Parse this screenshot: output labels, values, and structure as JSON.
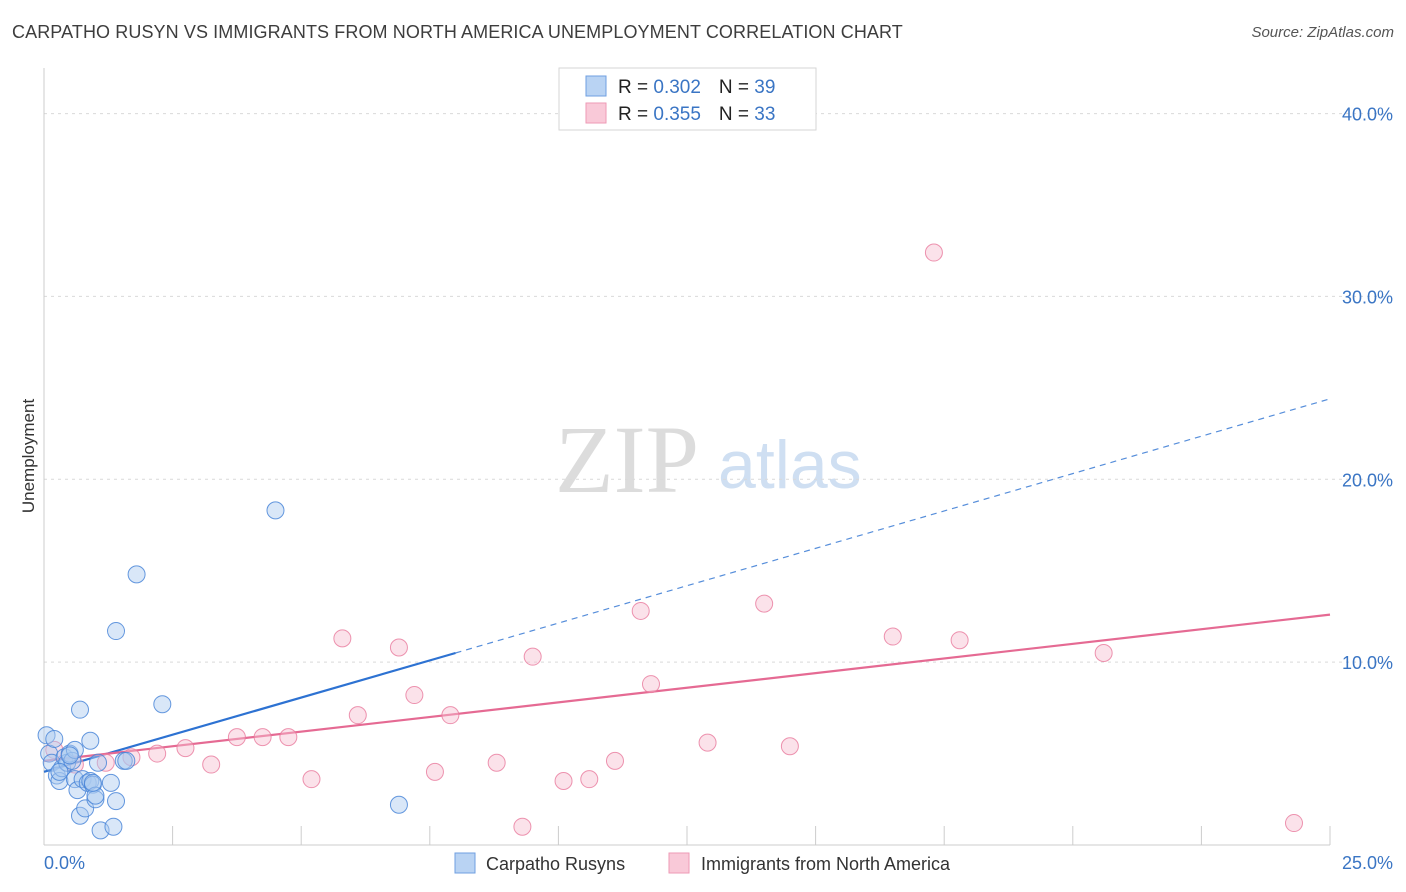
{
  "header": {
    "title": "CARPATHO RUSYN VS IMMIGRANTS FROM NORTH AMERICA UNEMPLOYMENT CORRELATION CHART",
    "source": "Source: ZipAtlas.com"
  },
  "watermark": {
    "zip": "ZIP",
    "atlas": "atlas"
  },
  "colors": {
    "blue": "#4a86d8",
    "blue_fill": "#aac9f0",
    "blue_line": "#2d72d2",
    "pink": "#e8799c",
    "pink_fill": "#f7bfd0",
    "pink_line": "#e56a93",
    "tick_text": "#3a75c4",
    "grid": "#d9d9d9"
  },
  "legend": {
    "rows": [
      {
        "r_label": "R = ",
        "r_value": "0.302",
        "n_label": "N = ",
        "n_value": "39"
      },
      {
        "r_label": "R = ",
        "r_value": "0.355",
        "n_label": "N = ",
        "n_value": "33"
      }
    ]
  },
  "chart_data": {
    "type": "scatter",
    "title": "CARPATHO RUSYN VS IMMIGRANTS FROM NORTH AMERICA UNEMPLOYMENT CORRELATION CHART",
    "xlabel": "",
    "ylabel": "Unemployment",
    "xlim": [
      0,
      25
    ],
    "ylim": [
      0,
      42
    ],
    "x_tick_labels": [
      {
        "value": 0,
        "label": "0.0%"
      },
      {
        "value": 25,
        "label": "25.0%"
      }
    ],
    "y_ticks": [
      {
        "value": 10,
        "label": "10.0%"
      },
      {
        "value": 20,
        "label": "20.0%"
      },
      {
        "value": 30,
        "label": "30.0%"
      },
      {
        "value": 40,
        "label": "40.0%"
      }
    ],
    "x_minor_ticks": [
      2.5,
      5,
      7.5,
      10,
      12.5,
      15,
      17.5,
      20,
      22.5,
      25
    ],
    "series": [
      {
        "name": "Carpatho Rusyns",
        "color": "#4a86d8",
        "trend": {
          "x0": 0,
          "y0": 4.0,
          "x1": 8.0,
          "y1": 10.5,
          "dashed_to_x": 25,
          "dashed_to_y": 24.4
        },
        "points": [
          [
            0.05,
            6.0
          ],
          [
            0.1,
            5.0
          ],
          [
            0.15,
            4.5
          ],
          [
            0.2,
            5.8
          ],
          [
            0.25,
            3.8
          ],
          [
            0.3,
            3.5
          ],
          [
            0.35,
            4.2
          ],
          [
            0.4,
            4.8
          ],
          [
            0.45,
            4.5
          ],
          [
            0.5,
            5.0
          ],
          [
            0.55,
            4.6
          ],
          [
            0.6,
            3.6
          ],
          [
            0.6,
            5.2
          ],
          [
            0.65,
            3.0
          ],
          [
            0.7,
            1.6
          ],
          [
            0.7,
            7.4
          ],
          [
            0.75,
            3.6
          ],
          [
            0.8,
            2.0
          ],
          [
            0.85,
            3.4
          ],
          [
            0.9,
            3.5
          ],
          [
            0.9,
            5.7
          ],
          [
            0.95,
            3.3
          ],
          [
            1.0,
            2.5
          ],
          [
            1.0,
            2.7
          ],
          [
            1.05,
            4.5
          ],
          [
            1.1,
            0.8
          ],
          [
            1.3,
            3.4
          ],
          [
            1.35,
            1.0
          ],
          [
            1.4,
            2.4
          ],
          [
            1.4,
            11.7
          ],
          [
            1.55,
            4.6
          ],
          [
            1.6,
            4.6
          ],
          [
            1.8,
            14.8
          ],
          [
            2.3,
            7.7
          ],
          [
            4.5,
            18.3
          ],
          [
            6.9,
            2.2
          ],
          [
            0.3,
            4.0
          ],
          [
            0.5,
            4.9
          ],
          [
            0.95,
            3.4
          ]
        ]
      },
      {
        "name": "Immigrants from North America",
        "color": "#e8799c",
        "trend": {
          "x0": 0,
          "y0": 4.6,
          "x1": 25,
          "y1": 12.6
        },
        "points": [
          [
            0.2,
            5.2
          ],
          [
            0.6,
            4.4
          ],
          [
            1.2,
            4.5
          ],
          [
            1.7,
            4.8
          ],
          [
            2.2,
            5.0
          ],
          [
            2.75,
            5.3
          ],
          [
            3.25,
            4.4
          ],
          [
            3.75,
            5.9
          ],
          [
            4.25,
            5.9
          ],
          [
            4.75,
            5.9
          ],
          [
            5.2,
            3.6
          ],
          [
            5.8,
            11.3
          ],
          [
            6.1,
            7.1
          ],
          [
            6.9,
            10.8
          ],
          [
            7.2,
            8.2
          ],
          [
            7.6,
            4.0
          ],
          [
            7.9,
            7.1
          ],
          [
            8.8,
            4.5
          ],
          [
            9.3,
            1.0
          ],
          [
            9.5,
            10.3
          ],
          [
            10.1,
            3.5
          ],
          [
            10.6,
            3.6
          ],
          [
            11.1,
            4.6
          ],
          [
            11.6,
            12.8
          ],
          [
            11.8,
            8.8
          ],
          [
            12.9,
            5.6
          ],
          [
            14.0,
            13.2
          ],
          [
            14.5,
            5.4
          ],
          [
            16.5,
            11.4
          ],
          [
            17.3,
            32.4
          ],
          [
            17.8,
            11.2
          ],
          [
            20.6,
            10.5
          ],
          [
            24.3,
            1.2
          ]
        ]
      }
    ]
  }
}
